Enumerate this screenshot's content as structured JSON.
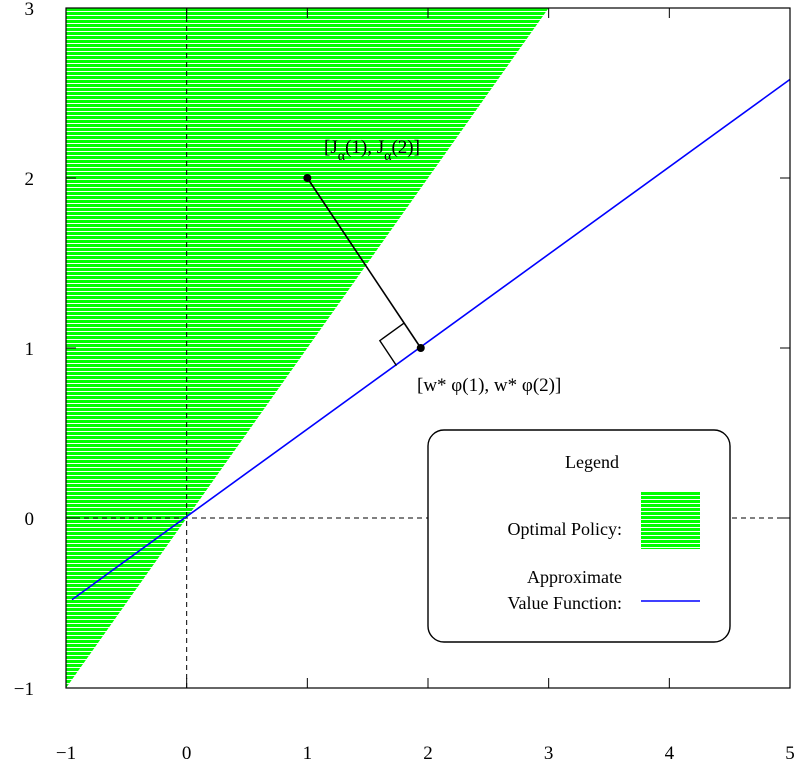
{
  "chart_data": {
    "type": "line",
    "xlim": [
      -1,
      5
    ],
    "ylim": [
      -1,
      3
    ],
    "x_ticks": [
      "−1",
      "0",
      "1",
      "2",
      "3",
      "4",
      "5"
    ],
    "y_ticks": [
      "−1",
      "0",
      "1",
      "2",
      "3"
    ],
    "grid": false,
    "reference_lines": [
      {
        "axis": "x",
        "value": 0,
        "style": "dashed"
      },
      {
        "axis": "y",
        "value": 0,
        "style": "dashed"
      }
    ],
    "shaded_region": {
      "name": "Optimal Policy",
      "color": "#00ff00",
      "pattern": "horizontal-stripes",
      "vertices": [
        [
          -1,
          -1
        ],
        [
          -1,
          3
        ],
        [
          3,
          3
        ],
        [
          0,
          0
        ]
      ]
    },
    "series": [
      {
        "name": "Approximate Value Function",
        "color": "#0000ff",
        "x": [
          -0.95,
          5
        ],
        "y": [
          -0.48,
          2.58
        ]
      }
    ],
    "points": [
      {
        "label": "[J_α(1), J_α(2)]",
        "x": 1,
        "y": 2
      },
      {
        "label": "[w* φ(1), w* φ(2)]",
        "x": 1.94,
        "y": 1
      }
    ],
    "projection_segment": {
      "from": [
        1,
        2
      ],
      "to": [
        1.94,
        1
      ],
      "right_angle_marker": true
    },
    "annotations": {
      "J_main": "[J",
      "J_sub1": "α",
      "J_mid": "(1),  J",
      "J_sub2": "α",
      "J_end": "(2)]",
      "w_label": "[w* φ(1), w* φ(2)]"
    },
    "legend": {
      "title": "Legend",
      "policy_label": "Optimal Policy:",
      "value_label_line1": "Approximate",
      "value_label_line2": "Value Function:",
      "placement": "lower-right"
    }
  }
}
